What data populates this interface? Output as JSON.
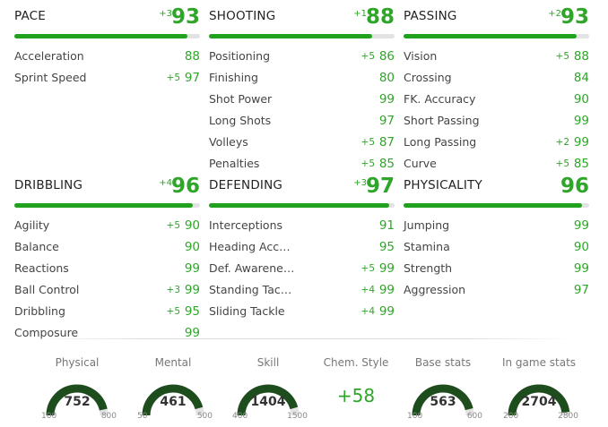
{
  "categories": {
    "pace": {
      "name": "PACE",
      "boost": "+3",
      "value": "93",
      "fill": 0.93,
      "stats": [
        {
          "label": "Acceleration",
          "boost": "",
          "value": "88"
        },
        {
          "label": "Sprint Speed",
          "boost": "+5",
          "value": "97"
        }
      ]
    },
    "shooting": {
      "name": "SHOOTING",
      "boost": "+1",
      "value": "88",
      "fill": 0.88,
      "stats": [
        {
          "label": "Positioning",
          "boost": "+5",
          "value": "86"
        },
        {
          "label": "Finishing",
          "boost": "",
          "value": "80"
        },
        {
          "label": "Shot Power",
          "boost": "",
          "value": "99"
        },
        {
          "label": "Long Shots",
          "boost": "",
          "value": "97"
        },
        {
          "label": "Volleys",
          "boost": "+5",
          "value": "87"
        },
        {
          "label": "Penalties",
          "boost": "+5",
          "value": "85"
        }
      ]
    },
    "passing": {
      "name": "PASSING",
      "boost": "+2",
      "value": "93",
      "fill": 0.93,
      "stats": [
        {
          "label": "Vision",
          "boost": "+5",
          "value": "88"
        },
        {
          "label": "Crossing",
          "boost": "",
          "value": "84"
        },
        {
          "label": "FK. Accuracy",
          "boost": "",
          "value": "90"
        },
        {
          "label": "Short Passing",
          "boost": "",
          "value": "99"
        },
        {
          "label": "Long Passing",
          "boost": "+2",
          "value": "99"
        },
        {
          "label": "Curve",
          "boost": "+5",
          "value": "85"
        }
      ]
    },
    "dribbling": {
      "name": "DRIBBLING",
      "boost": "+4",
      "value": "96",
      "fill": 0.96,
      "stats": [
        {
          "label": "Agility",
          "boost": "+5",
          "value": "90"
        },
        {
          "label": "Balance",
          "boost": "",
          "value": "90"
        },
        {
          "label": "Reactions",
          "boost": "",
          "value": "99"
        },
        {
          "label": "Ball Control",
          "boost": "+3",
          "value": "99"
        },
        {
          "label": "Dribbling",
          "boost": "+5",
          "value": "95"
        },
        {
          "label": "Composure",
          "boost": "",
          "value": "99"
        }
      ]
    },
    "defending": {
      "name": "DEFENDING",
      "boost": "+3",
      "value": "97",
      "fill": 0.97,
      "stats": [
        {
          "label": "Interceptions",
          "boost": "",
          "value": "91"
        },
        {
          "label": "Heading Acc…",
          "boost": "",
          "value": "95"
        },
        {
          "label": "Def. Awarene…",
          "boost": "+5",
          "value": "99"
        },
        {
          "label": "Standing Tac…",
          "boost": "+4",
          "value": "99"
        },
        {
          "label": "Sliding Tackle",
          "boost": "+4",
          "value": "99"
        }
      ]
    },
    "physicality": {
      "name": "PHYSICALITY",
      "boost": "",
      "value": "96",
      "fill": 0.96,
      "stats": [
        {
          "label": "Jumping",
          "boost": "",
          "value": "99"
        },
        {
          "label": "Stamina",
          "boost": "",
          "value": "90"
        },
        {
          "label": "Strength",
          "boost": "",
          "value": "99"
        },
        {
          "label": "Aggression",
          "boost": "",
          "value": "97"
        }
      ]
    }
  },
  "summary": {
    "physical": {
      "title": "Physical",
      "value": "752",
      "min": "100",
      "max": "800"
    },
    "mental": {
      "title": "Mental",
      "value": "461",
      "min": "50",
      "max": "500"
    },
    "skill": {
      "title": "Skill",
      "value": "1404",
      "min": "400",
      "max": "1500"
    },
    "chem": {
      "title": "Chem. Style",
      "value": "+58"
    },
    "base": {
      "title": "Base stats",
      "value": "563",
      "min": "100",
      "max": "600"
    },
    "ingame": {
      "title": "In game stats",
      "value": "2704",
      "min": "200",
      "max": "2800"
    }
  },
  "colors": {
    "accent": "#21a21f",
    "value_green": "#2fa52a",
    "gauge_dark": "#1e4d1d",
    "gauge_track": "#e3e3e3"
  }
}
